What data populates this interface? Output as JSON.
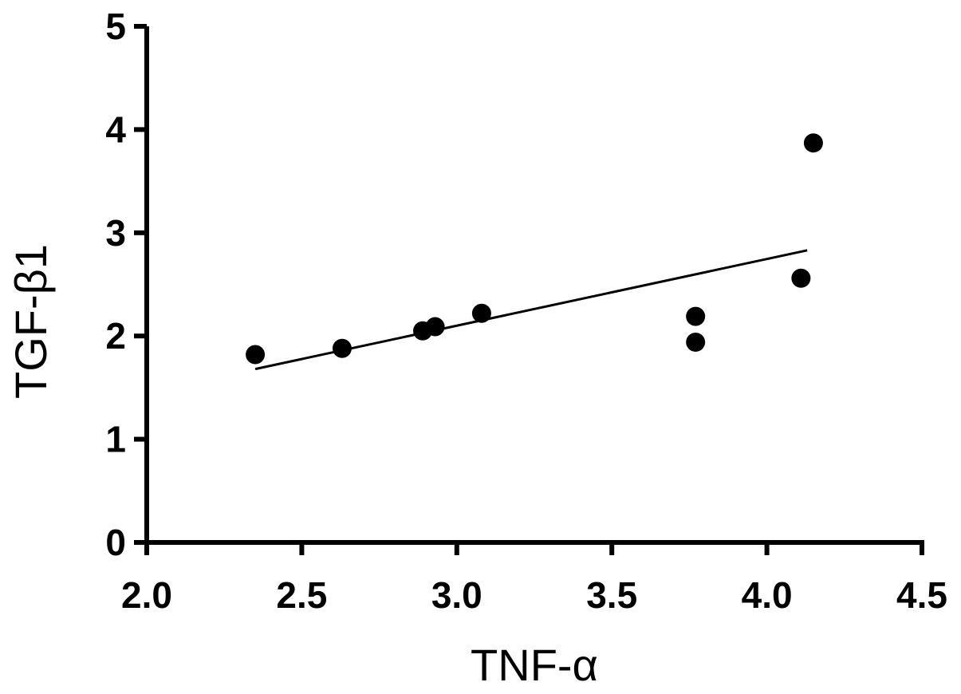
{
  "chart_data": {
    "type": "scatter",
    "title": "",
    "xlabel": "TNF-α",
    "ylabel": "TGF-β1",
    "xlim": [
      2.0,
      4.5
    ],
    "ylim": [
      0,
      5
    ],
    "x_ticks": [
      "2.0",
      "2.5",
      "3.0",
      "3.5",
      "4.0",
      "4.5"
    ],
    "y_ticks": [
      "0",
      "1",
      "2",
      "3",
      "4",
      "5"
    ],
    "grid": false,
    "legend": "none",
    "points": [
      {
        "x": 2.35,
        "y": 1.82
      },
      {
        "x": 2.63,
        "y": 1.88
      },
      {
        "x": 2.89,
        "y": 2.05
      },
      {
        "x": 2.93,
        "y": 2.09
      },
      {
        "x": 3.08,
        "y": 2.22
      },
      {
        "x": 3.77,
        "y": 2.19
      },
      {
        "x": 3.77,
        "y": 1.94
      },
      {
        "x": 4.11,
        "y": 2.56
      },
      {
        "x": 4.15,
        "y": 3.87
      }
    ],
    "fit_line": {
      "x": [
        2.35,
        4.13
      ],
      "y": [
        1.68,
        2.83
      ]
    },
    "colors": {
      "points": "#000000",
      "line": "#000000",
      "axes": "#000000"
    }
  }
}
